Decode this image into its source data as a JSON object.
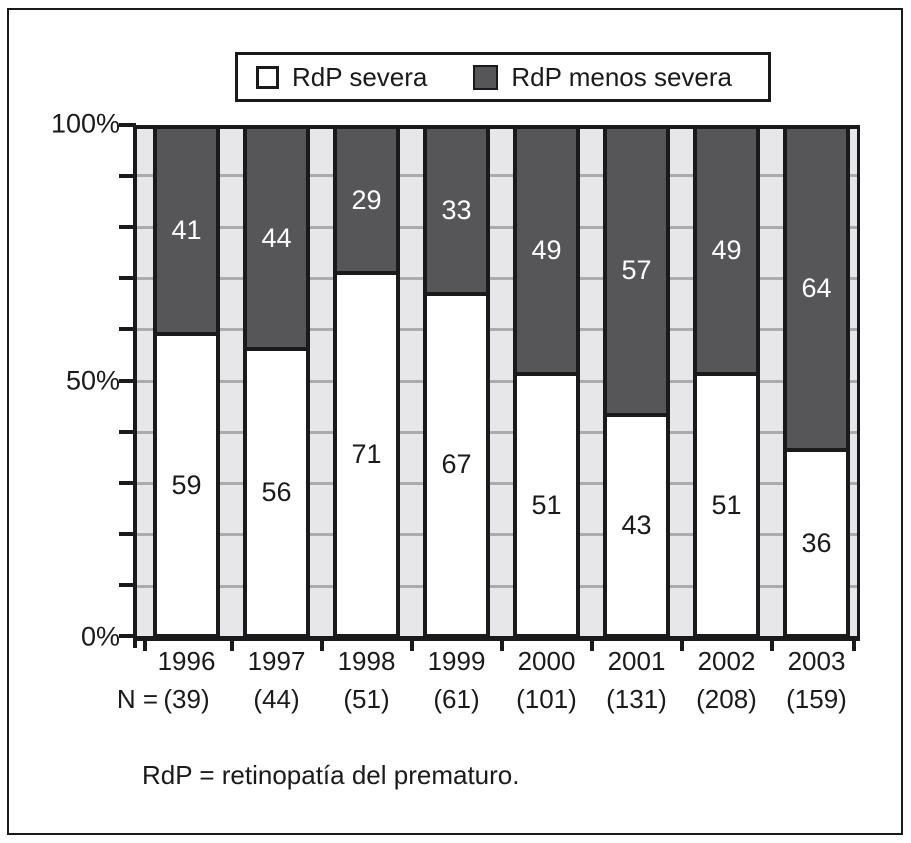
{
  "figure": {
    "footnote": "RdP = retinopatía del prematuro.",
    "n_prefix": "N ="
  },
  "colors": {
    "line_black": "#1a1a1c",
    "dark_fill": "#565659",
    "light_fill": "#ffffff",
    "plot_strip": "#e7e7e9",
    "gridline": "#ababad"
  },
  "chart_data": {
    "type": "bar",
    "stacked": true,
    "unit": "percent",
    "categories": [
      "1996",
      "1997",
      "1998",
      "1999",
      "2000",
      "2001",
      "2002",
      "2003"
    ],
    "n_labels": [
      "(39)",
      "(44)",
      "(51)",
      "(61)",
      "(101)",
      "(131)",
      "(208)",
      "(159)"
    ],
    "series": [
      {
        "name": "RdP severa",
        "values": [
          59,
          56,
          71,
          67,
          51,
          43,
          51,
          36
        ],
        "color": "#ffffff",
        "label_color": "#1a1a1c"
      },
      {
        "name": "RdP menos severa",
        "values": [
          41,
          44,
          29,
          33,
          49,
          57,
          49,
          64
        ],
        "color": "#565659",
        "label_color": "#ffffff"
      }
    ],
    "y_axis": {
      "ticks_major": [
        "100%",
        "50%",
        "0%"
      ],
      "tick_values_major": [
        100,
        50,
        0
      ],
      "minor_step": 10,
      "range": [
        0,
        100
      ]
    },
    "legend_position": "top",
    "grid": "horizontal-minor"
  }
}
